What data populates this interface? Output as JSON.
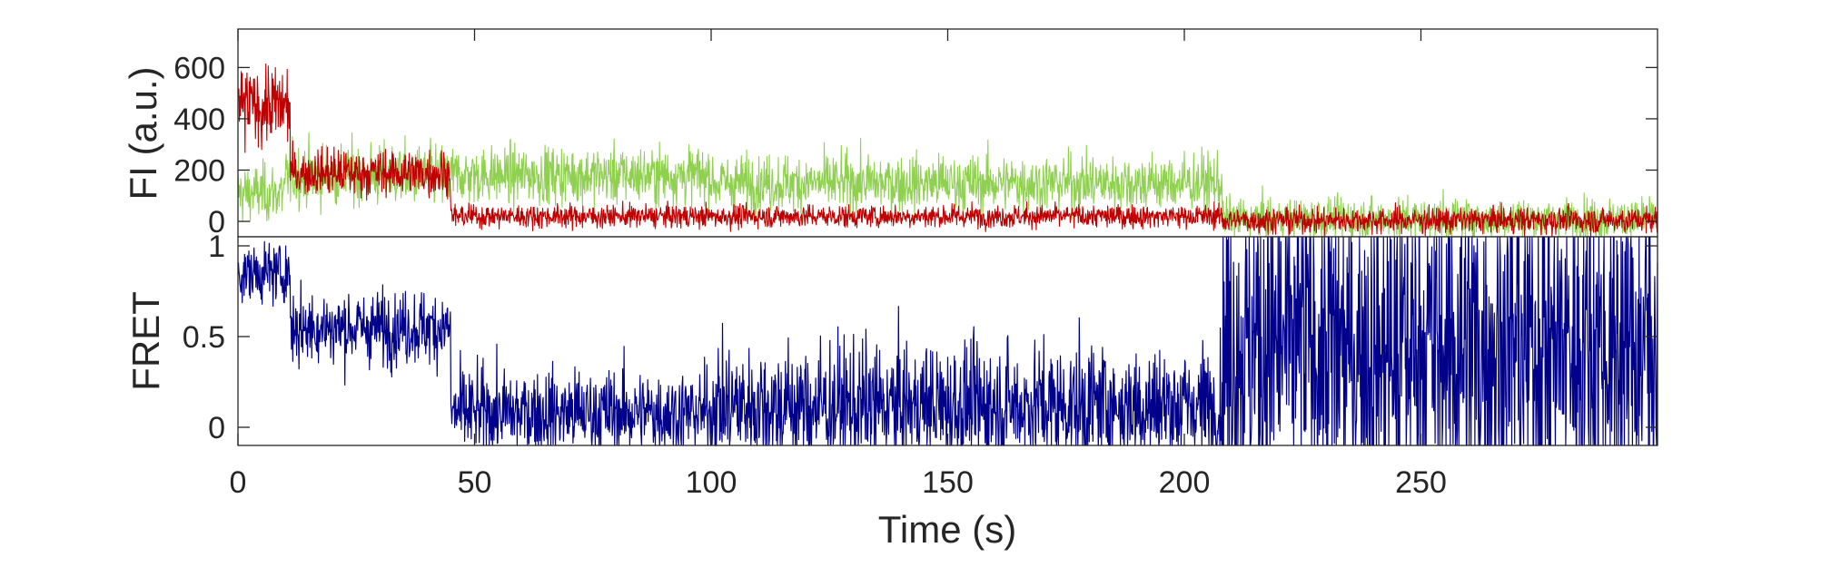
{
  "chart_data": [
    {
      "type": "line",
      "ylabel": "FI (a.u.)",
      "xlabel": "",
      "xlim": [
        0,
        300
      ],
      "ylim": [
        -60,
        750
      ],
      "yticks": [
        0,
        200,
        400,
        600
      ],
      "xticks_shown": false,
      "grid": false,
      "legend": "none",
      "series": [
        {
          "color": "#8fd14f",
          "description_segments": [
            {
              "x": [
                0,
                10
              ],
              "mean": 110,
              "noise_sd": 55
            },
            {
              "x": [
                10,
                45
              ],
              "mean": 180,
              "noise_sd": 60
            },
            {
              "x": [
                45,
                100
              ],
              "mean": 180,
              "noise_sd": 55
            },
            {
              "x": [
                100,
                208
              ],
              "mean": 150,
              "noise_sd": 55
            },
            {
              "x": [
                208,
                300
              ],
              "mean": 10,
              "noise_sd": 40
            }
          ]
        },
        {
          "color": "#c00000",
          "description_segments": [
            {
              "x": [
                0,
                11
              ],
              "mean": 450,
              "noise_sd": 75
            },
            {
              "x": [
                11,
                45
              ],
              "mean": 190,
              "noise_sd": 45
            },
            {
              "x": [
                45,
                208
              ],
              "mean": 20,
              "noise_sd": 22
            },
            {
              "x": [
                208,
                300
              ],
              "mean": 5,
              "noise_sd": 25
            }
          ]
        }
      ]
    },
    {
      "type": "line",
      "ylabel": "FRET",
      "xlabel": "Time (s)",
      "xlim": [
        0,
        300
      ],
      "ylim": [
        -0.1,
        1.05
      ],
      "yticks": [
        0,
        0.5,
        1
      ],
      "xticks": [
        0,
        50,
        100,
        150,
        200,
        250
      ],
      "grid": false,
      "legend": "none",
      "series": [
        {
          "color": "#00008b",
          "description_segments": [
            {
              "x": [
                0,
                11
              ],
              "mean": 0.85,
              "noise_sd": 0.08
            },
            {
              "x": [
                11,
                45
              ],
              "mean": 0.55,
              "noise_sd": 0.1
            },
            {
              "x": [
                45,
                100
              ],
              "mean": 0.08,
              "noise_sd": 0.12
            },
            {
              "x": [
                100,
                208
              ],
              "mean": 0.12,
              "noise_sd": 0.17
            },
            {
              "x": [
                208,
                300
              ],
              "mean": 0.45,
              "noise_sd": 0.5
            }
          ]
        }
      ]
    }
  ]
}
